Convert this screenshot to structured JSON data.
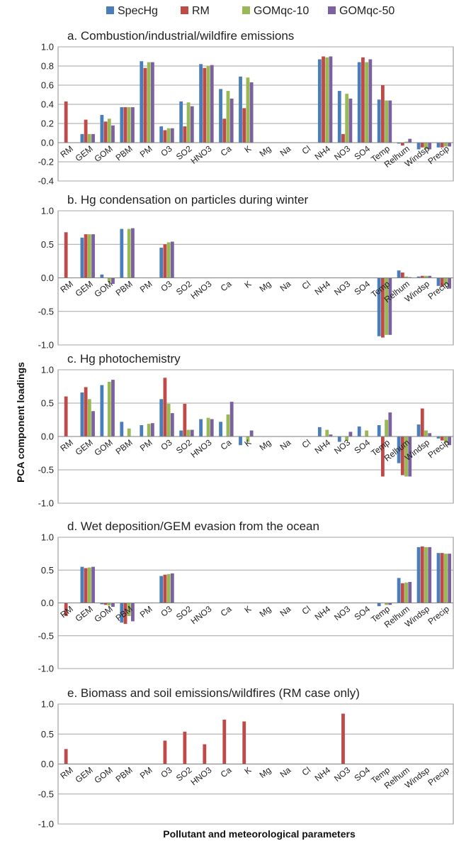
{
  "legend": [
    {
      "name": "SpecHg",
      "color": "#4a7ebb"
    },
    {
      "name": "RM",
      "color": "#be4b48"
    },
    {
      "name": "GOMqc-10",
      "color": "#98b954"
    },
    {
      "name": "GOMqc-50",
      "color": "#7d60a0"
    }
  ],
  "ylabel": "PCA component loadings",
  "xlabel": "Pollutant and meteorological parameters",
  "categories": [
    "RM",
    "GEM",
    "GOM",
    "PBM",
    "PM",
    "O3",
    "SO2",
    "HNO3",
    "Ca",
    "K",
    "Mg",
    "Na",
    "Cl",
    "NH4",
    "NO3",
    "SO4",
    "Temp",
    "Relhum",
    "Windsp",
    "Precip"
  ],
  "chart_data": [
    {
      "type": "bar",
      "title": "a. Combustion/industrial/wildfire emissions",
      "ylim": [
        -0.4,
        1.0
      ],
      "yticks": [
        "1.0",
        "0.8",
        "0.6",
        "0.4",
        "0.2",
        "0.0",
        "-0.2",
        "-0.4"
      ],
      "series": [
        {
          "name": "SpecHg",
          "values": [
            null,
            0.09,
            0.29,
            0.37,
            0.85,
            0.17,
            0.43,
            0.82,
            0.56,
            0.69,
            null,
            null,
            null,
            0.87,
            0.54,
            0.84,
            0.45,
            -0.01,
            -0.07,
            -0.05
          ]
        },
        {
          "name": "RM",
          "values": [
            0.43,
            0.24,
            0.22,
            0.37,
            0.78,
            0.13,
            0.17,
            0.78,
            0.25,
            0.36,
            null,
            null,
            null,
            0.9,
            0.09,
            0.89,
            0.6,
            -0.03,
            -0.05,
            -0.05
          ]
        },
        {
          "name": "GOMqc-10",
          "values": [
            null,
            0.09,
            0.25,
            0.37,
            0.84,
            0.15,
            0.42,
            0.8,
            0.54,
            0.68,
            null,
            null,
            null,
            0.89,
            0.51,
            0.84,
            0.44,
            0.01,
            -0.07,
            -0.04
          ]
        },
        {
          "name": "GOMqc-50",
          "values": [
            null,
            0.09,
            0.18,
            0.37,
            0.84,
            0.15,
            0.38,
            0.81,
            0.46,
            0.63,
            null,
            null,
            null,
            0.9,
            0.46,
            0.87,
            0.44,
            0.04,
            -0.07,
            -0.04
          ]
        }
      ]
    },
    {
      "type": "bar",
      "title": "b. Hg condensation on particles during winter",
      "ylim": [
        -1.0,
        1.0
      ],
      "yticks": [
        "1.0",
        "0.5",
        "0.0",
        "-0.5",
        "-1.0"
      ],
      "series": [
        {
          "name": "SpecHg",
          "values": [
            null,
            0.6,
            0.05,
            0.73,
            null,
            0.45,
            null,
            null,
            null,
            null,
            null,
            null,
            null,
            null,
            null,
            null,
            -0.87,
            0.11,
            0.02,
            -0.12
          ]
        },
        {
          "name": "RM",
          "values": [
            0.68,
            0.65,
            0.0,
            0.0,
            null,
            0.5,
            null,
            null,
            null,
            null,
            null,
            null,
            null,
            null,
            null,
            null,
            -0.89,
            0.08,
            0.03,
            -0.13
          ]
        },
        {
          "name": "GOMqc-10",
          "values": [
            null,
            0.65,
            -0.06,
            0.73,
            null,
            0.53,
            null,
            null,
            null,
            null,
            null,
            null,
            null,
            null,
            null,
            null,
            -0.85,
            0.02,
            0.03,
            -0.1
          ]
        },
        {
          "name": "GOMqc-50",
          "values": [
            null,
            0.65,
            -0.09,
            0.74,
            null,
            0.54,
            null,
            null,
            null,
            null,
            null,
            null,
            null,
            null,
            null,
            null,
            -0.85,
            0.01,
            0.03,
            -0.16
          ]
        }
      ]
    },
    {
      "type": "bar",
      "title": "c. Hg photochemistry",
      "ylim": [
        -1.0,
        1.0
      ],
      "yticks": [
        "1.0",
        "0.5",
        "0.0",
        "-0.5",
        "-1.0"
      ],
      "series": [
        {
          "name": "SpecHg",
          "values": [
            null,
            0.66,
            0.77,
            0.22,
            0.17,
            0.56,
            0.09,
            0.26,
            0.22,
            -0.13,
            null,
            null,
            null,
            0.14,
            -0.08,
            0.15,
            0.17,
            -0.4,
            0.18,
            -0.03
          ]
        },
        {
          "name": "RM",
          "values": [
            0.6,
            0.74,
            0.0,
            0.0,
            0.0,
            0.88,
            0.49,
            0.0,
            0.0,
            0.0,
            null,
            null,
            null,
            0.0,
            0.0,
            0.0,
            -0.6,
            -0.58,
            0.42,
            -0.06
          ]
        },
        {
          "name": "GOMqc-10",
          "values": [
            null,
            0.56,
            0.82,
            0.12,
            0.19,
            0.49,
            0.1,
            0.28,
            0.33,
            -0.08,
            null,
            null,
            null,
            0.1,
            -0.06,
            0.09,
            0.25,
            -0.6,
            0.09,
            -0.1
          ]
        },
        {
          "name": "GOMqc-50",
          "values": [
            null,
            0.38,
            0.85,
            0.0,
            0.2,
            0.35,
            0.1,
            0.26,
            0.52,
            0.09,
            null,
            null,
            null,
            0.03,
            0.07,
            0.0,
            0.36,
            -0.6,
            0.05,
            -0.13
          ]
        }
      ]
    },
    {
      "type": "bar",
      "title": "d. Wet deposition/GEM  evasion from the ocean",
      "ylim": [
        -1.0,
        1.0
      ],
      "yticks": [
        "1.0",
        "0.5",
        "0.0",
        "-0.5",
        "-1.0"
      ],
      "series": [
        {
          "name": "SpecHg",
          "values": [
            null,
            0.55,
            -0.02,
            -0.3,
            null,
            0.41,
            null,
            null,
            null,
            null,
            null,
            null,
            null,
            null,
            null,
            null,
            -0.05,
            0.38,
            0.85,
            0.76
          ]
        },
        {
          "name": "RM",
          "values": [
            -0.2,
            0.53,
            -0.03,
            -0.32,
            null,
            0.43,
            null,
            null,
            null,
            null,
            null,
            null,
            null,
            null,
            null,
            null,
            0.0,
            0.3,
            0.86,
            0.76
          ]
        },
        {
          "name": "GOMqc-10",
          "values": [
            null,
            0.54,
            -0.04,
            -0.2,
            null,
            0.44,
            null,
            null,
            null,
            null,
            null,
            null,
            null,
            null,
            null,
            null,
            -0.03,
            0.31,
            0.85,
            0.75
          ]
        },
        {
          "name": "GOMqc-50",
          "values": [
            null,
            0.55,
            -0.06,
            -0.28,
            null,
            0.45,
            null,
            null,
            null,
            null,
            null,
            null,
            null,
            null,
            null,
            null,
            -0.03,
            0.32,
            0.85,
            0.75
          ]
        }
      ]
    },
    {
      "type": "bar",
      "title": "e. Biomass and soil emissions/wildfires (RM case only)",
      "ylim": [
        -1.0,
        1.0
      ],
      "yticks": [
        "1.0",
        "0.5",
        "0.0",
        "-0.5",
        "-1.0"
      ],
      "series": [
        {
          "name": "RM",
          "values": [
            0.25,
            null,
            null,
            null,
            null,
            0.39,
            0.54,
            0.33,
            0.74,
            0.71,
            null,
            null,
            null,
            null,
            0.84,
            null,
            null,
            null,
            null,
            null
          ]
        }
      ]
    }
  ]
}
